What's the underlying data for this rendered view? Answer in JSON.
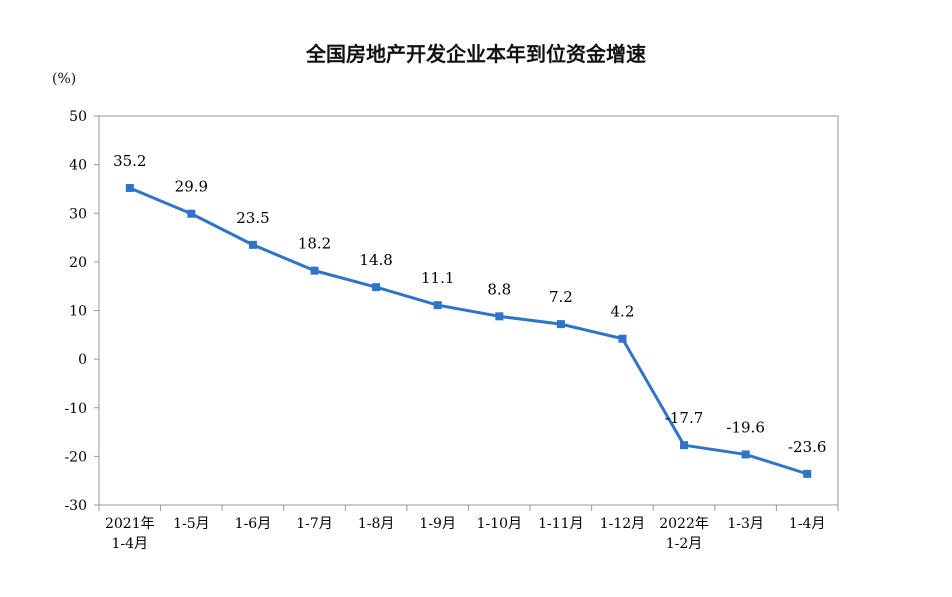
{
  "chart_data": {
    "type": "line",
    "title": "全国房地产开发企业本年到位资金增速",
    "ylabel": "(%)",
    "xlabel": "",
    "ylim": [
      -30,
      50
    ],
    "yticks": [
      "50",
      "40",
      "30",
      "20",
      "10",
      "0",
      "-10",
      "-20",
      "-30"
    ],
    "categories": [
      [
        "2021年",
        "1-4月"
      ],
      [
        "1-5月"
      ],
      [
        "1-6月"
      ],
      [
        "1-7月"
      ],
      [
        "1-8月"
      ],
      [
        "1-9月"
      ],
      [
        "1-10月"
      ],
      [
        "1-11月"
      ],
      [
        "1-12月"
      ],
      [
        "2022年",
        "1-2月"
      ],
      [
        "1-3月"
      ],
      [
        "1-4月"
      ]
    ],
    "series": [
      {
        "values": [
          35.2,
          29.9,
          23.5,
          18.2,
          14.8,
          11.1,
          8.8,
          7.2,
          4.2,
          -17.7,
          -19.6,
          -23.6
        ],
        "labels": [
          "35.2",
          "29.9",
          "23.5",
          "18.2",
          "14.8",
          "11.1",
          "8.8",
          "7.2",
          "4.2",
          "-17.7",
          "-19.6",
          "-23.6"
        ],
        "color": "#2f74c8"
      }
    ],
    "grid": false,
    "legend": "none"
  }
}
